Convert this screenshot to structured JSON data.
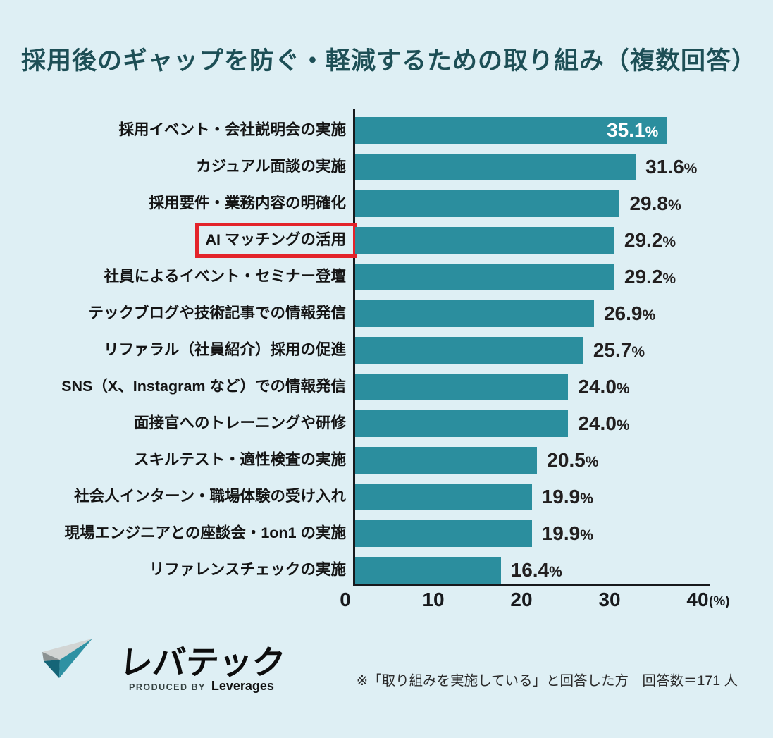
{
  "title": "採用後のギャップを防ぐ・軽減するための取り組み（複数回答）",
  "chart_data": {
    "type": "bar",
    "orientation": "horizontal",
    "title": "採用後のギャップを防ぐ・軽減するための取り組み（複数回答）",
    "categories": [
      "採用イベント・会社説明会の実施",
      "カジュアル面談の実施",
      "採用要件・業務内容の明確化",
      "AI マッチングの活用",
      "社員によるイベント・セミナー登壇",
      "テックブログや技術記事での情報発信",
      "リファラル（社員紹介）採用の促進",
      "SNS（X、Instagram など）での情報発信",
      "面接官へのトレーニングや研修",
      "スキルテスト・適性検査の実施",
      "社会人インターン・職場体験の受け入れ",
      "現場エンジニアとの座談会・1on1 の実施",
      "リファレンスチェックの実施"
    ],
    "values": [
      35.1,
      31.6,
      29.8,
      29.2,
      29.2,
      26.9,
      25.7,
      24.0,
      24.0,
      20.5,
      19.9,
      19.9,
      16.4
    ],
    "value_labels": [
      "35.1",
      "31.6",
      "29.8",
      "29.2",
      "29.2",
      "26.9",
      "25.7",
      "24.0",
      "24.0",
      "20.5",
      "19.9",
      "19.9",
      "16.4"
    ],
    "value_suffix": "%",
    "highlighted_category": "AI マッチングの活用",
    "highlighted_index": 3,
    "xlim": [
      0,
      40
    ],
    "x_ticks": [
      "0",
      "10",
      "20",
      "30",
      "40"
    ],
    "x_unit": "(%)",
    "grid": "off",
    "legend": "none",
    "first_bar_label_inside": true
  },
  "footnote": "※「取り組みを実施している」と回答した方　回答数＝171 人",
  "logo": {
    "brand": "レバテック",
    "produced_by": "PRODUCED BY",
    "company": "Leverages"
  },
  "colors": {
    "background": "#deeff4",
    "bar": "#2b8e9e",
    "title_text": "#1d4f56",
    "axis": "#17191c",
    "value_text": "#221f1f",
    "value_text_inside_bar": "#ffffff",
    "highlight_border": "#e3232a",
    "logo_mark_teal": "#2e91a3",
    "logo_mark_gray": "#d2d5d4"
  }
}
